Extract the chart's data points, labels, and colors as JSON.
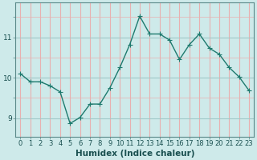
{
  "x_values": [
    0,
    1,
    2,
    3,
    4,
    5,
    6,
    7,
    8,
    9,
    10,
    11,
    12,
    13,
    14,
    15,
    16,
    17,
    18,
    19,
    20,
    21,
    22,
    23
  ],
  "y_values": [
    10.1,
    9.9,
    9.9,
    9.8,
    9.65,
    8.87,
    9.02,
    9.35,
    9.35,
    9.75,
    10.25,
    10.82,
    11.52,
    11.08,
    11.08,
    10.93,
    10.45,
    10.82,
    11.08,
    10.73,
    10.58,
    10.25,
    10.02,
    9.68
  ],
  "line_color": "#1e7a6e",
  "marker_color": "#1e7a6e",
  "bg_color": "#ceeaea",
  "grid_color_major": "#a0c8c8",
  "grid_color_minor": "#e8b0b0",
  "xlabel": "Humidex (Indice chaleur)",
  "yticks": [
    9,
    10,
    11
  ],
  "ylim": [
    8.55,
    11.85
  ],
  "xlim": [
    -0.5,
    23.5
  ],
  "xlabel_fontsize": 7.5,
  "tick_fontsize": 6.5,
  "linewidth": 1.0,
  "markersize": 2.2
}
